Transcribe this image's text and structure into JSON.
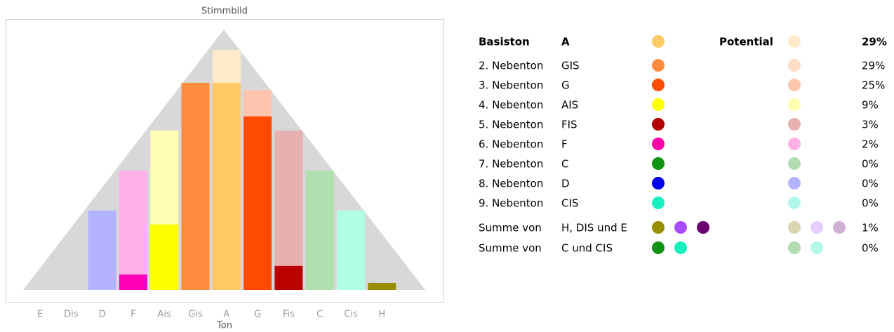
{
  "chart_data": {
    "type": "bar",
    "title": "Stimmbild",
    "x_label": "Ton",
    "categories": [
      "E",
      "Dis",
      "D",
      "F",
      "Ais",
      "Gis",
      "A",
      "G",
      "Fis",
      "C",
      "Cis",
      "H"
    ],
    "ylim": [
      0,
      100
    ],
    "series": [
      {
        "values": [
          null,
          null,
          30.5,
          45.8,
          61.2,
          79.5,
          92.2,
          76.8,
          61.2,
          45.8,
          30.5,
          null
        ],
        "colors": [
          "#cccccc",
          "#cccccc",
          "#b3b3ff",
          "#ffb0e8",
          "#ffffb4",
          "#ffdcc5",
          "#ffebcc",
          "#ffc4ad",
          "#e8b1b1",
          "#b0dfb0",
          "#b0ffe5",
          "#d9d6b0"
        ]
      },
      {
        "values": [
          null,
          null,
          null,
          5.9,
          25.1,
          79.5,
          79.5,
          66.6,
          9.2,
          null,
          null,
          2.7
        ],
        "colors": [
          "#888888",
          "#888888",
          "#0000ee",
          "#ff00b4",
          "#ffff00",
          "#ff8c3f",
          "#ffc966",
          "#ff4b00",
          "#bb0000",
          "#119411",
          "#16f0bf",
          "#998e00"
        ]
      }
    ]
  },
  "table": {
    "header": {
      "label": "Basiston",
      "tone": "A",
      "colors": [
        "#ffc966"
      ],
      "potential_label": "Potential",
      "potential_colors": [
        "#ffebcc"
      ],
      "percent": "29%"
    },
    "rows": [
      {
        "label": "2. Nebenton",
        "tone": "GIS",
        "colors": [
          "#ff8c3f"
        ],
        "potential_colors": [
          "#ffdcc5"
        ],
        "percent": "29%"
      },
      {
        "label": "3. Nebenton",
        "tone": "G",
        "colors": [
          "#ff4d00"
        ],
        "potential_colors": [
          "#ffc5ad"
        ],
        "percent": "25%"
      },
      {
        "label": "4. Nebenton",
        "tone": "AIS",
        "colors": [
          "#ffff00"
        ],
        "potential_colors": [
          "#ffffb0"
        ],
        "percent": "9%"
      },
      {
        "label": "5. Nebenton",
        "tone": "FIS",
        "colors": [
          "#b50000"
        ],
        "potential_colors": [
          "#e8b1b1"
        ],
        "percent": "3%"
      },
      {
        "label": "6. Nebenton",
        "tone": "F",
        "colors": [
          "#ff00aa"
        ],
        "potential_colors": [
          "#ffb0e5"
        ],
        "percent": "2%"
      },
      {
        "label": "7. Nebenton",
        "tone": "C",
        "colors": [
          "#119411"
        ],
        "potential_colors": [
          "#b2dbb2"
        ],
        "percent": "0%"
      },
      {
        "label": "8. Nebenton",
        "tone": "D",
        "colors": [
          "#0000ee"
        ],
        "potential_colors": [
          "#b3b3ff"
        ],
        "percent": "0%"
      },
      {
        "label": "9. Nebenton",
        "tone": "CIS",
        "colors": [
          "#16f0bf"
        ],
        "potential_colors": [
          "#b3f7e8"
        ],
        "percent": "0%"
      },
      {
        "label": "Summe von",
        "tone": "H, DIS und E",
        "colors": [
          "#978f00",
          "#a64dff",
          "#6a0070"
        ],
        "potential_colors": [
          "#d9d6b0",
          "#e6ccff",
          "#d1b0d5"
        ],
        "percent": "1%"
      },
      {
        "label": "Summe von",
        "tone": "C und CIS",
        "colors": [
          "#119411",
          "#16f0bf"
        ],
        "potential_colors": [
          "#b2dbb2",
          "#b3f7e8"
        ],
        "percent": "0%"
      }
    ]
  }
}
